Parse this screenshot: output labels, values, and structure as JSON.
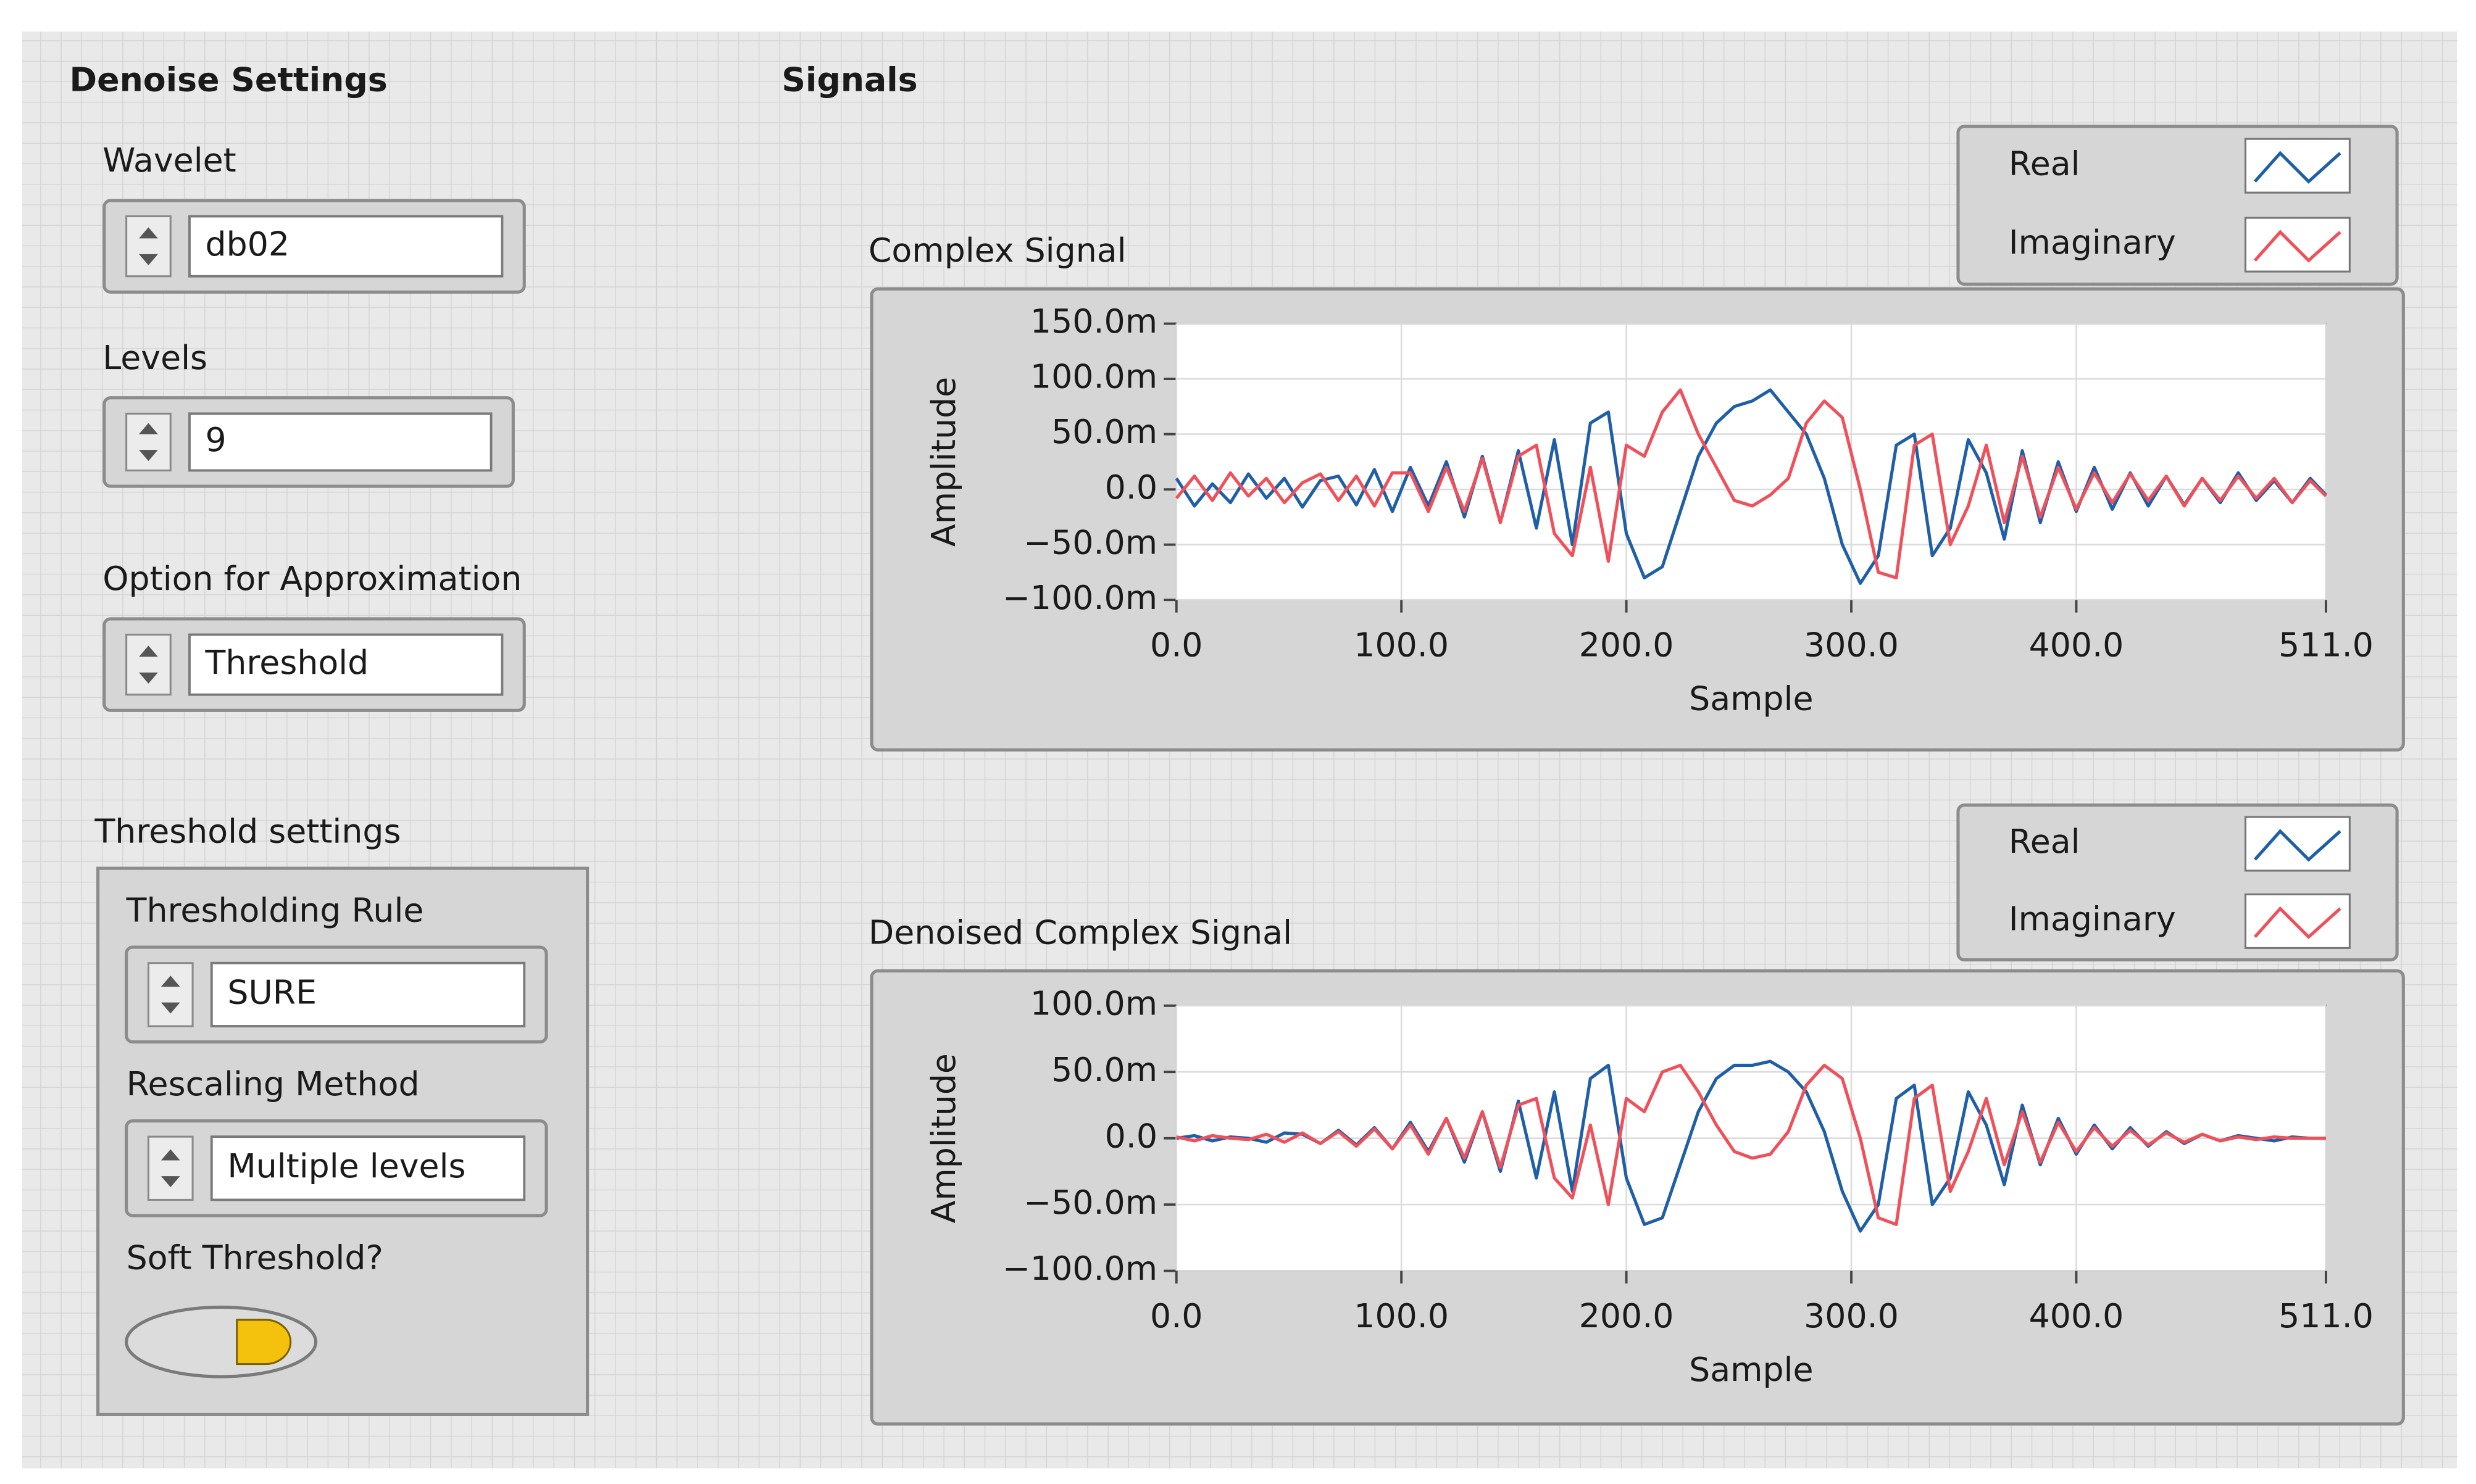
{
  "panel": {
    "settings_title": "Denoise Settings",
    "signals_title": "Signals",
    "wavelet": {
      "label": "Wavelet",
      "value": "db02"
    },
    "levels": {
      "label": "Levels",
      "value": "9"
    },
    "approximation": {
      "label": "Option for Approximation",
      "value": "Threshold"
    },
    "threshold_settings": {
      "title": "Threshold settings",
      "rule": {
        "label": "Thresholding Rule",
        "value": "SURE"
      },
      "rescaling": {
        "label": "Rescaling Method",
        "value": "Multiple levels"
      },
      "soft_threshold": {
        "label": "Soft Threshold?",
        "value": true
      }
    }
  },
  "chart_data": [
    {
      "type": "line",
      "title": "Complex Signal",
      "x_label": "Sample",
      "y_label": "Amplitude",
      "xlim": [
        0,
        511
      ],
      "ylim": [
        -0.1,
        0.15
      ],
      "grid": true,
      "legend": "top-right",
      "xticks": [
        {
          "value": 0,
          "label": "0.0"
        },
        {
          "value": 100,
          "label": "100.0"
        },
        {
          "value": 200,
          "label": "200.0"
        },
        {
          "value": 300,
          "label": "300.0"
        },
        {
          "value": 400,
          "label": "400.0"
        },
        {
          "value": 511,
          "label": "511.0"
        }
      ],
      "yticks": [
        {
          "value": 0.15,
          "label": "150.0m"
        },
        {
          "value": 0.1,
          "label": "100.0m"
        },
        {
          "value": 0.05,
          "label": "50.0m"
        },
        {
          "value": 0,
          "label": "0.0"
        },
        {
          "value": -0.05,
          "label": "−50.0m"
        },
        {
          "value": -0.1,
          "label": "−100.0m"
        }
      ],
      "x": [
        0,
        8,
        16,
        24,
        32,
        40,
        48,
        56,
        64,
        72,
        80,
        88,
        96,
        104,
        112,
        120,
        128,
        136,
        144,
        152,
        160,
        168,
        176,
        184,
        192,
        200,
        208,
        216,
        224,
        232,
        240,
        248,
        256,
        264,
        272,
        280,
        288,
        296,
        304,
        312,
        320,
        328,
        336,
        344,
        352,
        360,
        368,
        376,
        384,
        392,
        400,
        408,
        416,
        424,
        432,
        440,
        448,
        456,
        464,
        472,
        480,
        488,
        496,
        504,
        511
      ],
      "series": [
        {
          "name": "Real",
          "color": "#1f5fa8",
          "values": [
            0.01,
            -0.015,
            0.005,
            -0.012,
            0.014,
            -0.008,
            0.01,
            -0.016,
            0.008,
            0.012,
            -0.014,
            0.018,
            -0.02,
            0.02,
            -0.015,
            0.025,
            -0.025,
            0.03,
            -0.03,
            0.035,
            -0.035,
            0.045,
            -0.05,
            0.06,
            0.07,
            -0.04,
            -0.08,
            -0.07,
            -0.02,
            0.03,
            0.06,
            0.075,
            0.08,
            0.09,
            0.07,
            0.05,
            0.01,
            -0.05,
            -0.085,
            -0.06,
            0.04,
            0.05,
            -0.06,
            -0.035,
            0.045,
            0.015,
            -0.045,
            0.035,
            -0.03,
            0.025,
            -0.02,
            0.02,
            -0.018,
            0.015,
            -0.015,
            0.012,
            -0.014,
            0.01,
            -0.012,
            0.015,
            -0.01,
            0.008,
            -0.012,
            0.01,
            -0.005
          ]
        },
        {
          "name": "Imaginary",
          "color": "#f0505a",
          "values": [
            -0.008,
            0.012,
            -0.01,
            0.015,
            -0.006,
            0.01,
            -0.012,
            0.006,
            0.014,
            -0.01,
            0.012,
            -0.015,
            0.015,
            0.015,
            -0.02,
            0.02,
            -0.02,
            0.028,
            -0.03,
            0.03,
            0.04,
            -0.04,
            -0.06,
            0.02,
            -0.065,
            0.04,
            0.03,
            0.07,
            0.09,
            0.05,
            0.02,
            -0.01,
            -0.015,
            -0.005,
            0.01,
            0.06,
            0.08,
            0.065,
            0,
            -0.075,
            -0.08,
            0.04,
            0.05,
            -0.05,
            -0.015,
            0.04,
            -0.03,
            0.03,
            -0.025,
            0.02,
            -0.018,
            0.015,
            -0.012,
            0.014,
            -0.01,
            0.012,
            -0.015,
            0.01,
            -0.01,
            0.012,
            -0.008,
            0.01,
            -0.012,
            0.008,
            -0.006
          ]
        }
      ]
    },
    {
      "type": "line",
      "title": "Denoised Complex Signal",
      "x_label": "Sample",
      "y_label": "Amplitude",
      "xlim": [
        0,
        511
      ],
      "ylim": [
        -0.1,
        0.1
      ],
      "grid": true,
      "legend": "top-right",
      "xticks": [
        {
          "value": 0,
          "label": "0.0"
        },
        {
          "value": 100,
          "label": "100.0"
        },
        {
          "value": 200,
          "label": "200.0"
        },
        {
          "value": 300,
          "label": "300.0"
        },
        {
          "value": 400,
          "label": "400.0"
        },
        {
          "value": 511,
          "label": "511.0"
        }
      ],
      "yticks": [
        {
          "value": 0.1,
          "label": "100.0m"
        },
        {
          "value": 0.05,
          "label": "50.0m"
        },
        {
          "value": 0,
          "label": "0.0"
        },
        {
          "value": -0.05,
          "label": "−50.0m"
        },
        {
          "value": -0.1,
          "label": "−100.0m"
        }
      ],
      "x": [
        0,
        8,
        16,
        24,
        32,
        40,
        48,
        56,
        64,
        72,
        80,
        88,
        96,
        104,
        112,
        120,
        128,
        136,
        144,
        152,
        160,
        168,
        176,
        184,
        192,
        200,
        208,
        216,
        224,
        232,
        240,
        248,
        256,
        264,
        272,
        280,
        288,
        296,
        304,
        312,
        320,
        328,
        336,
        344,
        352,
        360,
        368,
        376,
        384,
        392,
        400,
        408,
        416,
        424,
        432,
        440,
        448,
        456,
        464,
        472,
        480,
        488,
        496,
        504,
        511
      ],
      "series": [
        {
          "name": "Real",
          "color": "#1f5fa8",
          "values": [
            0,
            0.002,
            -0.002,
            0.001,
            0,
            -0.003,
            0.004,
            0.003,
            -0.004,
            0.006,
            -0.005,
            0.008,
            -0.008,
            0.012,
            -0.01,
            0.015,
            -0.018,
            0.02,
            -0.025,
            0.028,
            -0.03,
            0.035,
            -0.04,
            0.045,
            0.055,
            -0.03,
            -0.065,
            -0.06,
            -0.02,
            0.02,
            0.045,
            0.055,
            0.055,
            0.058,
            0.05,
            0.035,
            0.005,
            -0.04,
            -0.07,
            -0.05,
            0.03,
            0.04,
            -0.05,
            -0.03,
            0.035,
            0.01,
            -0.035,
            0.025,
            -0.02,
            0.015,
            -0.012,
            0.01,
            -0.008,
            0.008,
            -0.006,
            0.005,
            -0.004,
            0.003,
            -0.002,
            0.002,
            0,
            -0.002,
            0.001,
            0,
            0
          ]
        },
        {
          "name": "Imaginary",
          "color": "#f0505a",
          "values": [
            0.001,
            -0.002,
            0.002,
            0,
            -0.001,
            0.003,
            -0.003,
            0.004,
            -0.004,
            0.005,
            -0.006,
            0.007,
            -0.008,
            0.01,
            -0.012,
            0.015,
            -0.015,
            0.02,
            -0.022,
            0.025,
            0.03,
            -0.03,
            -0.045,
            0.01,
            -0.05,
            0.03,
            0.02,
            0.05,
            0.055,
            0.035,
            0.01,
            -0.01,
            -0.015,
            -0.012,
            0.005,
            0.04,
            0.055,
            0.045,
            0,
            -0.06,
            -0.065,
            0.03,
            0.04,
            -0.04,
            -0.01,
            0.03,
            -0.02,
            0.02,
            -0.018,
            0.012,
            -0.01,
            0.008,
            -0.006,
            0.006,
            -0.005,
            0.004,
            -0.003,
            0.003,
            -0.002,
            0.001,
            -0.001,
            0.001,
            0,
            0,
            0
          ]
        }
      ]
    }
  ]
}
